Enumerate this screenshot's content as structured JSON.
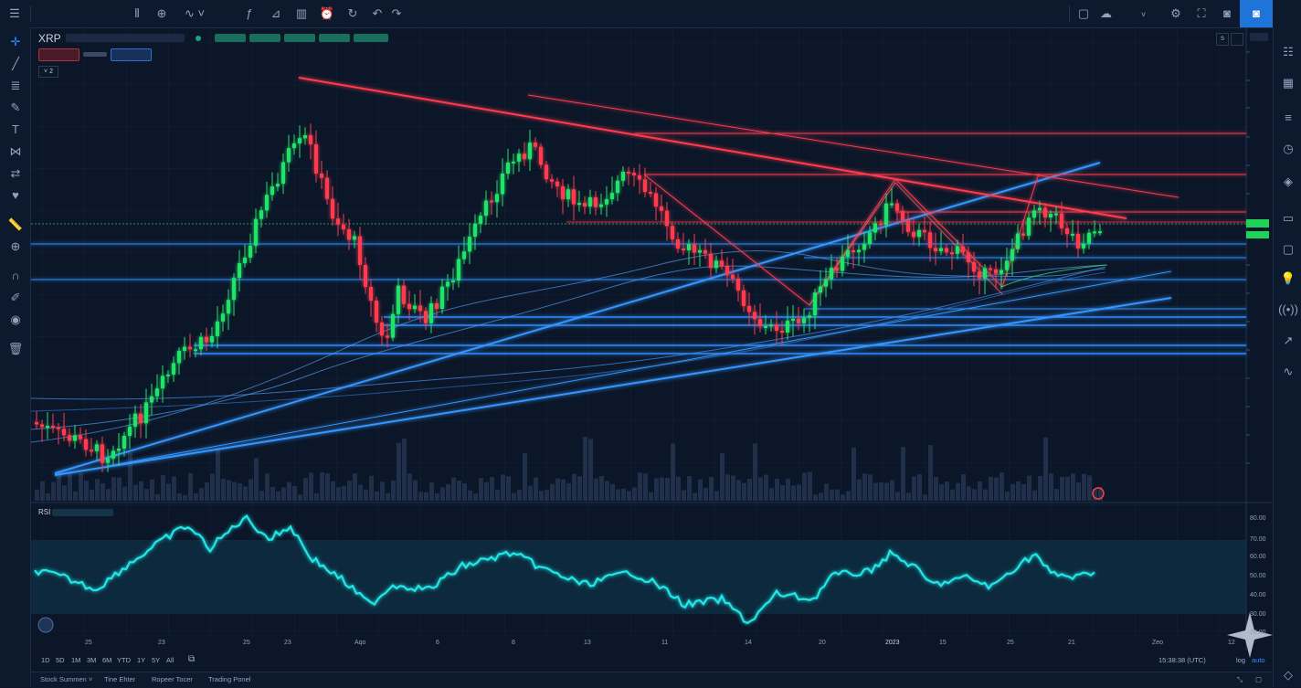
{
  "app": {
    "symbol": "XRP",
    "indicator_label": "RSI",
    "legend_count": "2",
    "clock": "15:38:38 (UTC)",
    "scale_log": "log",
    "scale_auto": "auto",
    "scale_s": "S"
  },
  "ranges": [
    "1D",
    "5D",
    "1M",
    "3M",
    "6M",
    "YTD",
    "1Y",
    "5Y",
    "All"
  ],
  "bottom_tabs": [
    "Stock Summen",
    "Tine Ehter",
    "Ropeer Tocer",
    "Trading Ponel"
  ],
  "x_labels": [
    "25",
    "23",
    "25",
    "23",
    "Aqo",
    "6",
    "8",
    "13",
    "11",
    "14",
    "20",
    "2023",
    "15",
    "25",
    "21",
    "Zeo",
    "12"
  ],
  "rsi_ticks": [
    "80.00",
    "70.00",
    "60.00",
    "50.00",
    "40.00",
    "30.00",
    "20.00"
  ],
  "icons": {
    "top": [
      "menu-icon",
      "candles-icon",
      "add-icon",
      "line-icon",
      "indicator-icon",
      "bars-icon",
      "area-icon",
      "alert-icon",
      "replay-icon",
      "undo-icon",
      "redo-icon"
    ],
    "top_right": [
      "layout-icon",
      "cloud-icon",
      "settings-icon",
      "fullscreen-icon",
      "camera-icon",
      "snapshot-icon"
    ],
    "left": [
      "crosshair-icon",
      "trendline-icon",
      "fib-icon",
      "brush-icon",
      "text-icon",
      "pattern-icon",
      "forecast-icon",
      "heart-icon",
      "ruler-icon",
      "zoom-icon",
      "magnet-icon",
      "lock-icon",
      "eye-icon",
      "trash-icon"
    ],
    "right": [
      "watchlist-icon",
      "alarm-icon",
      "calendar-icon",
      "list-icon",
      "history-icon",
      "ideas-icon",
      "chat-icon",
      "message-icon",
      "bulb-icon",
      "broadcast-icon",
      "trend-icon",
      "wave-icon",
      "layers-icon"
    ]
  },
  "colors": {
    "up": "#22e36a",
    "down": "#ff3b4e",
    "accent": "#1e74d9",
    "rsi_line": "#22e6e6",
    "rsi_upper": "#e05fe0",
    "rsi_lower": "#33e6a8",
    "blue_line": "#2f8cff"
  }
}
